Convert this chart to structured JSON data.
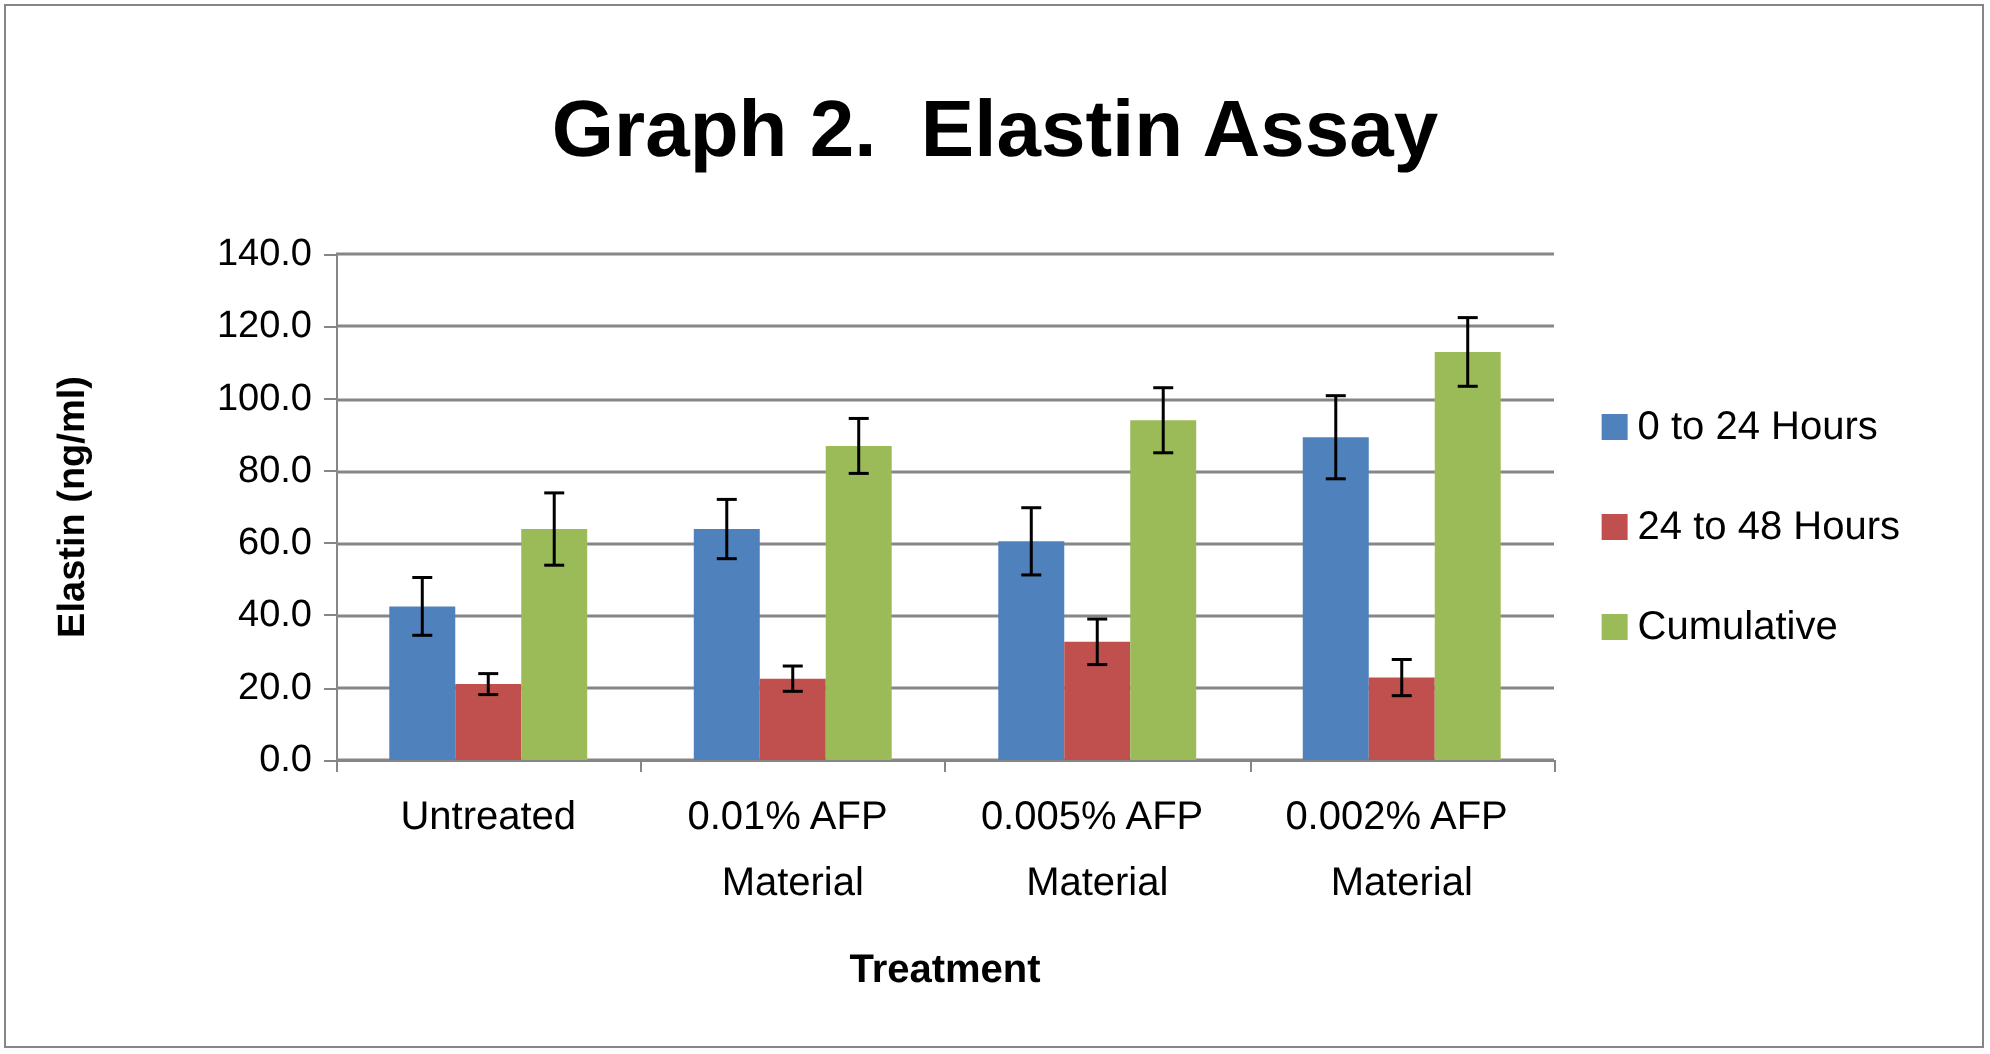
{
  "chart_data": {
    "type": "bar",
    "title": "Graph 2.  Elastin Assay",
    "xlabel": "Treatment",
    "ylabel": "Elastin (ng/ml)",
    "categories": [
      "Untreated",
      "0.01% AFP Material",
      "0.005% AFP Material",
      "0.002% AFP Material"
    ],
    "series": [
      {
        "name": "0 to 24 Hours",
        "color": "#4f81bd",
        "values": [
          42.5,
          63.9,
          60.5,
          89.3
        ],
        "errors": [
          8,
          8.2,
          9.3,
          11.5
        ]
      },
      {
        "name": "24 to 48 Hours",
        "color": "#c0504d",
        "values": [
          21.0,
          22.5,
          32.7,
          22.8
        ],
        "errors": [
          2.9,
          3.5,
          6.3,
          5
        ]
      },
      {
        "name": "Cumulative",
        "color": "#9bbb59",
        "values": [
          63.9,
          86.9,
          94.0,
          112.9
        ],
        "errors": [
          10,
          7.6,
          9,
          9.5
        ]
      }
    ],
    "ylim": [
      0,
      140
    ],
    "yticks": [
      {
        "value": 0,
        "label": "0.0"
      },
      {
        "value": 20,
        "label": "20.0"
      },
      {
        "value": 40,
        "label": "40.0"
      },
      {
        "value": 60,
        "label": "60.0"
      },
      {
        "value": 80,
        "label": "80.0"
      },
      {
        "value": 100,
        "label": "100.0"
      },
      {
        "value": 120,
        "label": "120.0"
      },
      {
        "value": 140,
        "label": "140.0"
      }
    ],
    "grid": "y",
    "legend": "right"
  }
}
